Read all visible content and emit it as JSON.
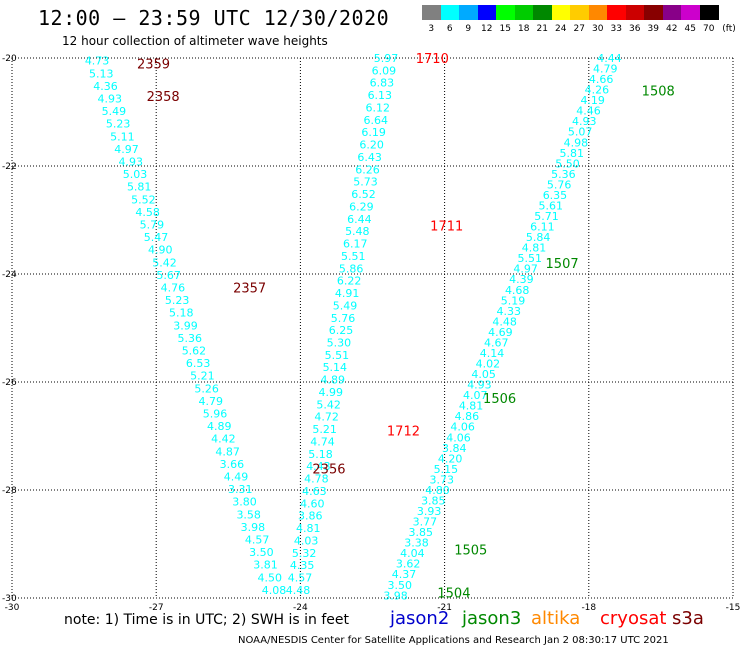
{
  "header": {
    "title": "12:00 – 23:59 UTC 12/30/2020",
    "subtitle": "12 hour collection of altimeter wave heights"
  },
  "colorbar": {
    "unit": "(ft)",
    "bins": [
      {
        "label": "3",
        "color": "#808080"
      },
      {
        "label": "6",
        "color": "#00ffff"
      },
      {
        "label": "9",
        "color": "#00aaff"
      },
      {
        "label": "12",
        "color": "#0000ff"
      },
      {
        "label": "15",
        "color": "#00ff00"
      },
      {
        "label": "18",
        "color": "#00cc00"
      },
      {
        "label": "21",
        "color": "#008800"
      },
      {
        "label": "24",
        "color": "#ffff00"
      },
      {
        "label": "27",
        "color": "#ffcc00"
      },
      {
        "label": "30",
        "color": "#ff8800"
      },
      {
        "label": "33",
        "color": "#ff0000"
      },
      {
        "label": "36",
        "color": "#cc0000"
      },
      {
        "label": "39",
        "color": "#880000"
      },
      {
        "label": "42",
        "color": "#880088"
      },
      {
        "label": "45",
        "color": "#cc00cc"
      },
      {
        "label": "70",
        "color": "#000000"
      }
    ]
  },
  "chart_data": {
    "type": "scatter",
    "xlim": [
      -30,
      -15
    ],
    "ylim": [
      -30,
      -20
    ],
    "x_ticks": [
      "-30",
      "-27",
      "-24",
      "-21",
      "-18",
      "-15"
    ],
    "y_ticks": [
      "-20",
      "-22",
      "-24",
      "-26",
      "-28",
      "-30"
    ],
    "grid": true,
    "point_color": "#00ffff",
    "tracks": [
      {
        "x_start": -28.23,
        "y_start": -20.05,
        "x_end": -24.55,
        "y_end": -29.85,
        "values": [
          "4.73",
          "5.13",
          "4.36",
          "4.93",
          "5.49",
          "5.23",
          "5.11",
          "4.97",
          "4.93",
          "5.03",
          "5.81",
          "5.52",
          "4.58",
          "5.79",
          "5.47",
          "4.90",
          "5.42",
          "5.67",
          "4.76",
          "5.23",
          "5.18",
          "3.99",
          "5.36",
          "5.62",
          "6.53",
          "5.21",
          "5.26",
          "4.79",
          "5.96",
          "4.89",
          "4.42",
          "4.87",
          "3.66",
          "4.49",
          "3.31",
          "3.80",
          "3.58",
          "3.98",
          "4.57",
          "3.50",
          "3.81",
          "4.50",
          "4.08"
        ]
      },
      {
        "x_start": -22.22,
        "y_start": -20.0,
        "x_end": -24.05,
        "y_end": -29.85,
        "values": [
          "5.97",
          "6.09",
          "6.83",
          "6.13",
          "6.12",
          "6.64",
          "6.19",
          "6.20",
          "6.43",
          "6.26",
          "5.73",
          "6.52",
          "6.29",
          "6.44",
          "5.48",
          "6.17",
          "5.51",
          "5.86",
          "6.22",
          "4.91",
          "5.49",
          "5.76",
          "6.25",
          "5.30",
          "5.51",
          "5.14",
          "4.89",
          "4.99",
          "5.42",
          "4.72",
          "5.21",
          "4.74",
          "5.18",
          "4.43",
          "4.78",
          "4.63",
          "4.60",
          "3.86",
          "4.81",
          "4.03",
          "5.32",
          "4.35",
          "4.57",
          "4.48"
        ]
      },
      {
        "x_start": -17.57,
        "y_start": -20.0,
        "x_end": -22.02,
        "y_end": -29.95,
        "values": [
          "4.44",
          "4.79",
          "4.66",
          "4.26",
          "4.19",
          "4.46",
          "4.93",
          "5.07",
          "4.98",
          "5.81",
          "5.50",
          "5.36",
          "5.76",
          "6.35",
          "5.61",
          "5.71",
          "6.11",
          "5.84",
          "4.81",
          "5.51",
          "4.97",
          "4.39",
          "4.68",
          "5.19",
          "4.33",
          "4.48",
          "4.69",
          "4.67",
          "4.14",
          "4.02",
          "4.05",
          "4.93",
          "4.07",
          "4.81",
          "4.86",
          "4.06",
          "4.06",
          "3.84",
          "4.20",
          "5.15",
          "3.73",
          "4.80",
          "3.85",
          "3.93",
          "3.77",
          "3.85",
          "3.38",
          "4.04",
          "3.62",
          "4.37",
          "3.50",
          "3.98"
        ]
      }
    ],
    "pass_labels": [
      {
        "text": "2359",
        "color": "#7a0000",
        "x": -27.4,
        "y": -20.1
      },
      {
        "text": "2358",
        "color": "#7a0000",
        "x": -27.2,
        "y": -20.7
      },
      {
        "text": "2357",
        "color": "#7a0000",
        "x": -25.4,
        "y": -24.25
      },
      {
        "text": "2356",
        "color": "#7a0000",
        "x": -23.75,
        "y": -27.6
      },
      {
        "text": "1710",
        "color": "#ff0000",
        "x": -21.6,
        "y": -20.0
      },
      {
        "text": "1711",
        "color": "#ff0000",
        "x": -21.3,
        "y": -23.1
      },
      {
        "text": "1712",
        "color": "#ff0000",
        "x": -22.2,
        "y": -26.9
      },
      {
        "text": "1508",
        "color": "#008800",
        "x": -16.9,
        "y": -20.6
      },
      {
        "text": "1507",
        "color": "#008800",
        "x": -18.9,
        "y": -23.8
      },
      {
        "text": "1506",
        "color": "#008800",
        "x": -20.2,
        "y": -26.3
      },
      {
        "text": "1505",
        "color": "#008800",
        "x": -20.8,
        "y": -29.1
      },
      {
        "text": "1504",
        "color": "#008800",
        "x": -21.15,
        "y": -29.9
      }
    ]
  },
  "footer": {
    "note": "note:  1) Time is in UTC;  2) SWH is in feet",
    "missions": [
      {
        "name": "jason2",
        "color": "#0000cc"
      },
      {
        "name": "jason3",
        "color": "#008800"
      },
      {
        "name": "altika",
        "color": "#ff8800"
      },
      {
        "name": "cryosat",
        "color": "#ff0000"
      },
      {
        "name": "s3a",
        "color": "#7a0000"
      }
    ],
    "credit": "NOAA/NESDIS Center for Satellite Applications and Research     Jan  2 08:30:17 UTC 2021"
  }
}
